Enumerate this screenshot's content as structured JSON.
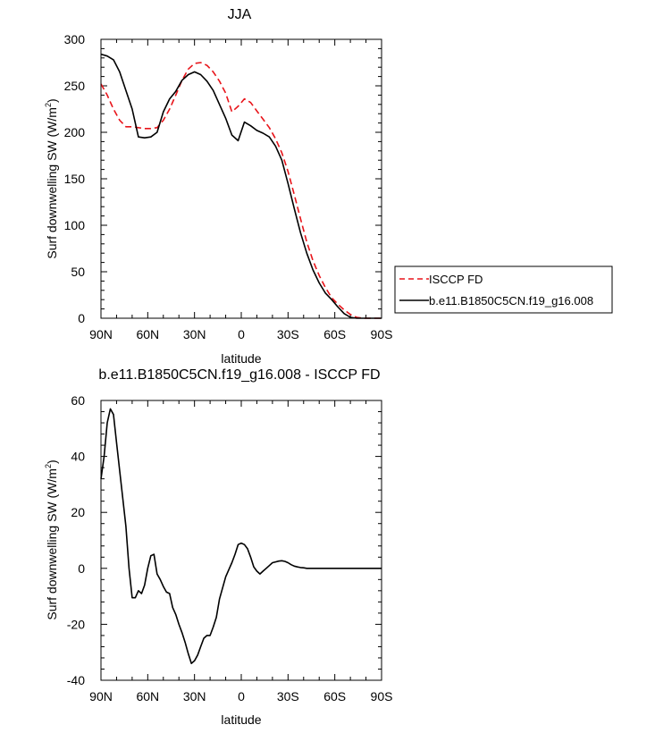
{
  "chart_data": [
    {
      "type": "line",
      "title": "JJA",
      "xlabel": "latitude",
      "ylabel": "Surf downwelling SW (W/m²)",
      "ylabel_main": "Surf downwelling SW (W/m",
      "ylabel_sup": "2",
      "ylabel_tail": ")",
      "xlim": [
        90,
        -90
      ],
      "ylim": [
        0,
        300
      ],
      "x_ticks": [
        90,
        60,
        30,
        0,
        -30,
        -60,
        -90
      ],
      "x_ticklabels": [
        "90N",
        "60N",
        "30N",
        "0",
        "30S",
        "60S",
        "90S"
      ],
      "y_ticks": [
        0,
        50,
        100,
        150,
        200,
        250,
        300
      ],
      "y_ticklabels": [
        "0",
        "50",
        "100",
        "150",
        "200",
        "250",
        "300"
      ],
      "legend_position": "right",
      "series": [
        {
          "name": "ISCCP FD",
          "color": "#e8141a",
          "dash": "dashed",
          "x": [
            90,
            86,
            82,
            78,
            74,
            70,
            66,
            62,
            58,
            54,
            50,
            46,
            42,
            38,
            34,
            30,
            26,
            22,
            18,
            14,
            10,
            6,
            2,
            -2,
            -6,
            -10,
            -14,
            -18,
            -22,
            -26,
            -30,
            -34,
            -38,
            -42,
            -46,
            -50,
            -54,
            -58,
            -62,
            -66,
            -70,
            -74,
            -78,
            -82,
            -86,
            -90
          ],
          "y": [
            252,
            240,
            225,
            213,
            206,
            206,
            205,
            204,
            204,
            205,
            213,
            225,
            240,
            256,
            268,
            274,
            275,
            272,
            265,
            255,
            242,
            222,
            228,
            236,
            232,
            223,
            214,
            205,
            193,
            178,
            158,
            133,
            107,
            82,
            62,
            46,
            33,
            22,
            15,
            9,
            4,
            1,
            0,
            0,
            0,
            0
          ]
        },
        {
          "name": "b.e11.B1850C5CN.f19_g16.008",
          "color": "#000000",
          "dash": "solid",
          "x": [
            90,
            86,
            82,
            78,
            74,
            70,
            66,
            62,
            58,
            54,
            50,
            46,
            42,
            38,
            34,
            30,
            26,
            22,
            18,
            14,
            10,
            6,
            2,
            -2,
            -6,
            -10,
            -14,
            -18,
            -22,
            -26,
            -30,
            -34,
            -38,
            -42,
            -46,
            -50,
            -54,
            -58,
            -62,
            -66,
            -70,
            -74,
            -78,
            -82,
            -86,
            -90
          ],
          "y": [
            284,
            282,
            278,
            265,
            245,
            225,
            195,
            194,
            195,
            200,
            222,
            236,
            244,
            256,
            262,
            265,
            262,
            255,
            245,
            230,
            215,
            197,
            191,
            211,
            207,
            202,
            199,
            195,
            185,
            170,
            145,
            118,
            92,
            70,
            52,
            38,
            27,
            20,
            12,
            5,
            1,
            0,
            0,
            0,
            0,
            0
          ]
        }
      ]
    },
    {
      "type": "line",
      "title": "b.e11.B1850C5CN.f19_g16.008 - ISCCP FD",
      "xlabel": "latitude",
      "ylabel": "Surf downwelling SW (W/m²)",
      "ylabel_main": "Surf downwelling SW (W/m",
      "ylabel_sup": "2",
      "ylabel_tail": ")",
      "xlim": [
        90,
        -90
      ],
      "ylim": [
        -40,
        60
      ],
      "x_ticks": [
        90,
        60,
        30,
        0,
        -30,
        -60,
        -90
      ],
      "x_ticklabels": [
        "90N",
        "60N",
        "30N",
        "0",
        "30S",
        "60S",
        "90S"
      ],
      "y_ticks": [
        -40,
        -20,
        0,
        20,
        40,
        60
      ],
      "y_ticklabels": [
        "-40",
        "-20",
        "0",
        "20",
        "40",
        "60"
      ],
      "series": [
        {
          "color": "#000000",
          "dash": "solid",
          "x": [
            90,
            88,
            86,
            84,
            82,
            80,
            78,
            76,
            74,
            72,
            70,
            68,
            66,
            64,
            62,
            60,
            58,
            56,
            54,
            52,
            50,
            48,
            46,
            44,
            42,
            40,
            38,
            36,
            34,
            32,
            30,
            28,
            26,
            24,
            22,
            20,
            18,
            16,
            14,
            12,
            10,
            8,
            6,
            4,
            2,
            0,
            -2,
            -4,
            -6,
            -8,
            -10,
            -12,
            -14,
            -16,
            -18,
            -20,
            -22,
            -24,
            -26,
            -28,
            -30,
            -32,
            -34,
            -36,
            -38,
            -40,
            -42,
            -44,
            -46,
            -48,
            -50,
            -52,
            -54,
            -56,
            -58,
            -60,
            -62,
            -64,
            -66,
            -68,
            -70,
            -72,
            -74,
            -76,
            -78,
            -80,
            -82,
            -84,
            -86,
            -88,
            -90
          ],
          "y": [
            32,
            40,
            52,
            57,
            55,
            45,
            35,
            25,
            15,
            0,
            -10.5,
            -10.5,
            -8,
            -9,
            -6,
            0,
            4.5,
            5,
            -2,
            -4,
            -6.5,
            -8.5,
            -9,
            -14,
            -16.5,
            -20,
            -23,
            -26.5,
            -30.5,
            -34,
            -33,
            -31,
            -28,
            -25,
            -24,
            -24,
            -21,
            -17.5,
            -11,
            -7,
            -3,
            -0.5,
            2,
            5,
            8.5,
            9,
            8.5,
            7,
            4,
            0.5,
            -1,
            -2,
            -1,
            0,
            1,
            2,
            2.3,
            2.6,
            2.7,
            2.5,
            2,
            1.3,
            0.8,
            0.5,
            0.3,
            0.2,
            0,
            0,
            0,
            0,
            0,
            0,
            0,
            0,
            0,
            0,
            0,
            0,
            0,
            0,
            0,
            0,
            0,
            0,
            0,
            0,
            0,
            0,
            0,
            0,
            0
          ]
        }
      ]
    }
  ]
}
